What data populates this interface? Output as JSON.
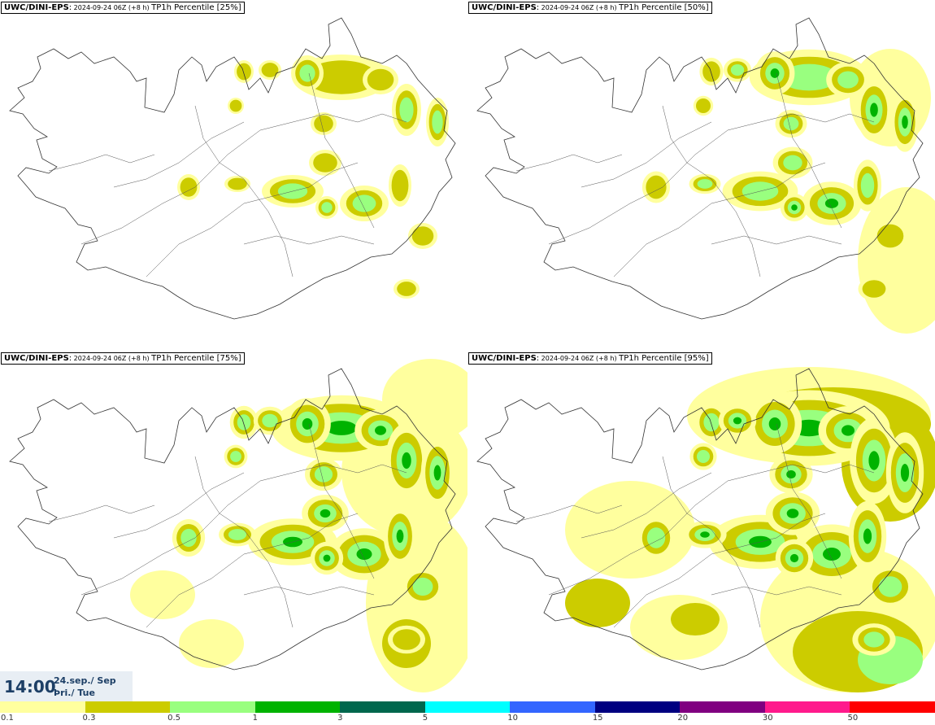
{
  "panels": [
    {
      "source": "UWC/DINI-EPS",
      "run": "2024-09-24 06Z (+8 h)",
      "product": "TP1h Percentile [25%]",
      "level": 1
    },
    {
      "source": "UWC/DINI-EPS",
      "run": "2024-09-24 06Z (+8 h)",
      "product": "TP1h Percentile [50%]",
      "level": 2
    },
    {
      "source": "UWC/DINI-EPS",
      "run": "2024-09-24 06Z (+8 h)",
      "product": "TP1h Percentile [75%]",
      "level": 3
    },
    {
      "source": "UWC/DINI-EPS",
      "run": "2024-09-24 06Z (+8 h)",
      "product": "TP1h Percentile [95%]",
      "level": 4
    }
  ],
  "valid_time": {
    "time": "14:00",
    "date": "24.sep./ Sep",
    "weekday": "Þri./ Tue"
  },
  "legend": {
    "colors": [
      "#ffff9e",
      "#cccc00",
      "#99ff7f",
      "#00b300",
      "#00674d",
      "#00ffff",
      "#3366ff",
      "#000080",
      "#800080",
      "#ff1a8c",
      "#ff0000"
    ],
    "ticks": [
      "0.1",
      "0.3",
      "0.5",
      "1",
      "3",
      "5",
      "10",
      "15",
      "20",
      "30",
      "50"
    ]
  }
}
